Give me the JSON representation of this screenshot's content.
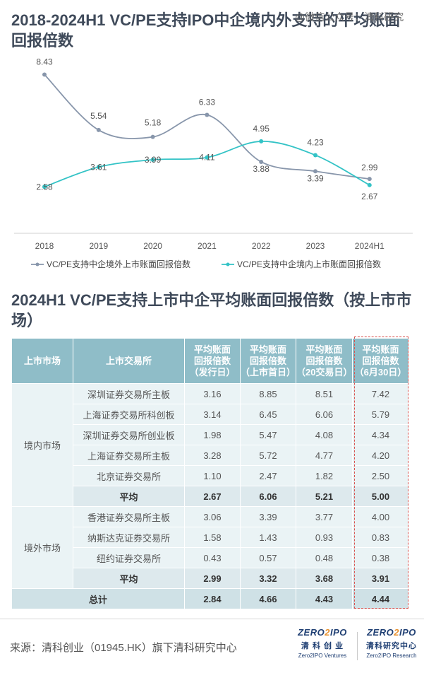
{
  "header": {
    "title": "2018-2024H1 VC/PE支持IPO中企境内外支持的平均账面回报倍数",
    "watermark": "@微信公众号：清科研究"
  },
  "chart_data": {
    "type": "line",
    "categories": [
      "2018",
      "2019",
      "2020",
      "2021",
      "2022",
      "2023",
      "2024H1"
    ],
    "series": [
      {
        "name": "VC/PE支持中企境外上市账面回报倍数",
        "color": "#8896ab",
        "values": [
          8.43,
          5.54,
          5.18,
          6.33,
          3.88,
          3.39,
          2.99
        ]
      },
      {
        "name": "VC/PE支持中企境内上市账面回报倍数",
        "color": "#33c3c6",
        "values": [
          2.58,
          3.61,
          3.99,
          4.11,
          4.95,
          4.23,
          2.67
        ]
      }
    ],
    "value_labels": [
      [
        "8.43",
        "5.54",
        "5.18",
        "6.33",
        "3.88",
        "3.39",
        "2.99"
      ],
      [
        "2.58",
        "3.61",
        "3.99",
        "4.11",
        "4.95",
        "4.23",
        "2.67"
      ]
    ],
    "grid": false,
    "legend_position": "bottom"
  },
  "table": {
    "title": "2024H1 VC/PE支持上市中企平均账面回报倍数（按上市市场）",
    "headers": [
      "上市市场",
      "上市交易所",
      "平均账面回报倍数（发行日）",
      "平均账面回报倍数（上市首日）",
      "平均账面回报倍数（20交易日）",
      "平均账面回报倍数（6月30日）"
    ],
    "header_lines": [
      [
        "上市市场"
      ],
      [
        "上市交易所"
      ],
      [
        "平均账面",
        "回报倍数",
        "（发行日）"
      ],
      [
        "平均账面",
        "回报倍数",
        "（上市首日）"
      ],
      [
        "平均账面",
        "回报倍数",
        "（20交易日）"
      ],
      [
        "平均账面",
        "回报倍数",
        "（6月30日）"
      ]
    ],
    "groups": [
      {
        "market": "境内市场",
        "rows": [
          [
            "深圳证券交易所主板",
            "3.16",
            "8.85",
            "8.51",
            "7.42"
          ],
          [
            "上海证券交易所科创板",
            "3.14",
            "6.45",
            "6.06",
            "5.79"
          ],
          [
            "深圳证券交易所创业板",
            "1.98",
            "5.47",
            "4.08",
            "4.34"
          ],
          [
            "上海证券交易所主板",
            "3.28",
            "5.72",
            "4.77",
            "4.20"
          ],
          [
            "北京证券交易所",
            "1.10",
            "2.47",
            "1.82",
            "2.50"
          ]
        ],
        "average": [
          "平均",
          "2.67",
          "6.06",
          "5.21",
          "5.00"
        ]
      },
      {
        "market": "境外市场",
        "rows": [
          [
            "香港证券交易所主板",
            "3.06",
            "3.39",
            "3.77",
            "4.00"
          ],
          [
            "纳斯达克证券交易所",
            "1.58",
            "1.43",
            "0.93",
            "0.83"
          ],
          [
            "纽约证券交易所",
            "0.43",
            "0.57",
            "0.48",
            "0.38"
          ]
        ],
        "average": [
          "平均",
          "2.99",
          "3.32",
          "3.68",
          "3.91"
        ]
      }
    ],
    "total": [
      "总计",
      "2.84",
      "4.66",
      "4.43",
      "4.44"
    ]
  },
  "footer": {
    "source": "来源：清科创业（01945.HK）旗下清科研究中心",
    "logo1": {
      "mark_a": "ZERO",
      "mark_b": "2",
      "mark_c": "IPO",
      "cn": "清 科 创 业",
      "en": "Zero2IPO Ventures"
    },
    "logo2": {
      "mark_a": "ZERO",
      "mark_b": "2",
      "mark_c": "IPO",
      "cn": "清科研究中心",
      "en": "Zero2IPO Research"
    }
  }
}
